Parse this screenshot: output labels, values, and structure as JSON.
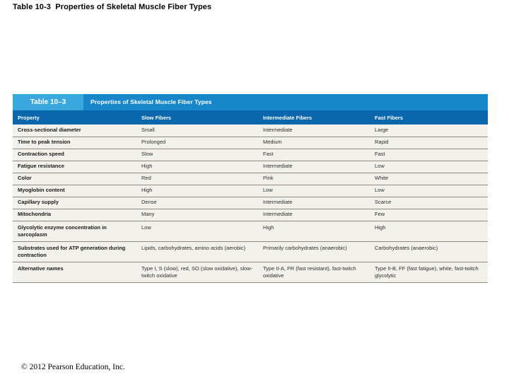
{
  "slide": {
    "title": "Table 10-3  Properties of Skeletal Muscle Fiber Types",
    "copyright": "© 2012 Pearson Education, Inc."
  },
  "table": {
    "tab_label": "Table 10–3",
    "title": "Properties of Skeletal Muscle Fiber Types",
    "columns": [
      "Property",
      "Slow Fibers",
      "Intermediate Fibers",
      "Fast Fibers"
    ],
    "rows": [
      {
        "property": "Cross-sectional diameter",
        "slow": "Small",
        "intermediate": "Intermediate",
        "fast": "Large"
      },
      {
        "property": "Time to peak tension",
        "slow": "Prolonged",
        "intermediate": "Medium",
        "fast": "Rapid"
      },
      {
        "property": "Contraction speed",
        "slow": "Slow",
        "intermediate": "Fast",
        "fast": "Fast"
      },
      {
        "property": "Fatigue resistance",
        "slow": "High",
        "intermediate": "Intermediate",
        "fast": "Low"
      },
      {
        "property": "Color",
        "slow": "Red",
        "intermediate": "Pink",
        "fast": "White"
      },
      {
        "property": "Myoglobin content",
        "slow": "High",
        "intermediate": "Low",
        "fast": "Low"
      },
      {
        "property": "Capillary supply",
        "slow": "Dense",
        "intermediate": "Intermediate",
        "fast": "Scarce"
      },
      {
        "property": "Mitochondria",
        "slow": "Many",
        "intermediate": "Intermediate",
        "fast": "Few"
      },
      {
        "property": "Glycolytic enzyme concentration in sarcoplasm",
        "slow": "Low",
        "intermediate": "High",
        "fast": "High"
      },
      {
        "property": "Substrates used for ATP generation during contraction",
        "slow": "Lipids, carbohydrates, amino acids (aerobic)",
        "intermediate": "Primarily carbohydrates (anaerobic)",
        "fast": "Carbohydrates (anaerobic)"
      },
      {
        "property": "Alternative names",
        "slow": "Type I, S (slow), red, SO (slow oxidative), slow-twitch oxidative",
        "intermediate": "Type II-A, FR (fast resistant), fast-twitch oxidative",
        "fast": "Type II-B, FF (fast fatigue), white, fast-twitch glycolytic"
      }
    ],
    "colors": {
      "tab_bg": "#3aa7dd",
      "title_band_bg": "#1787ca",
      "header_row_bg": "#0a67ab",
      "body_bg": "#f2f1ec",
      "row_rule": "#8b8a86"
    }
  }
}
